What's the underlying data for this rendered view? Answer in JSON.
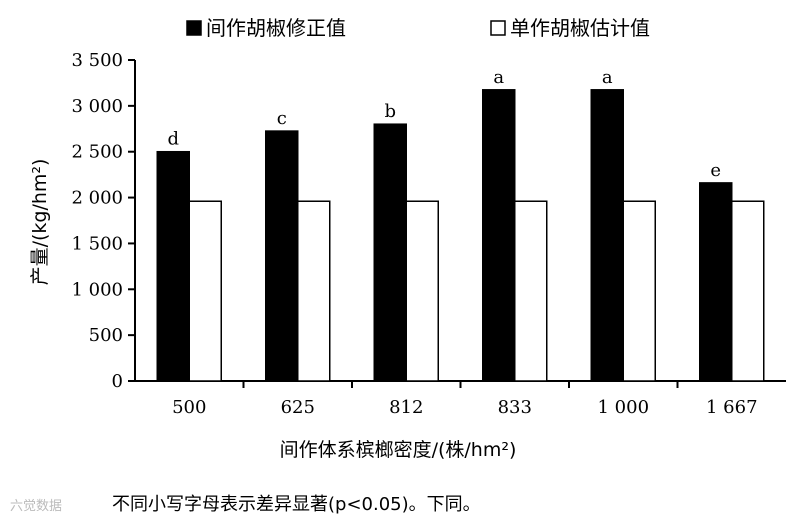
{
  "chart_data": {
    "type": "bar",
    "categories": [
      "500",
      "625",
      "812",
      "833",
      "1 000",
      "1 667"
    ],
    "series": [
      {
        "name": "间作胡椒修正值",
        "values": [
          2500,
          2725,
          2800,
          3175,
          3175,
          2160
        ],
        "color": "#000000"
      },
      {
        "name": "单作胡椒估计值",
        "values": [
          1960,
          1960,
          1960,
          1960,
          1960,
          1960
        ],
        "color": "#ffffff"
      }
    ],
    "significance_letters": [
      "d",
      "c",
      "b",
      "a",
      "a",
      "e"
    ],
    "ylim": [
      0,
      3500
    ],
    "yticks": [
      0,
      500,
      1000,
      1500,
      2000,
      2500,
      3000,
      3500
    ],
    "ytick_labels": [
      "0",
      "500",
      "1 000",
      "1 500",
      "2 000",
      "2 500",
      "3 000",
      "3 500"
    ],
    "xlabel": "间作体系槟榔密度/(株/hm²)",
    "ylabel": "产量/(kg/hm²)",
    "legend_position": "top",
    "grid": false
  },
  "note": "不同小写字母表示差异显著(p<0.05)。下同。",
  "watermark": "六觉数据"
}
